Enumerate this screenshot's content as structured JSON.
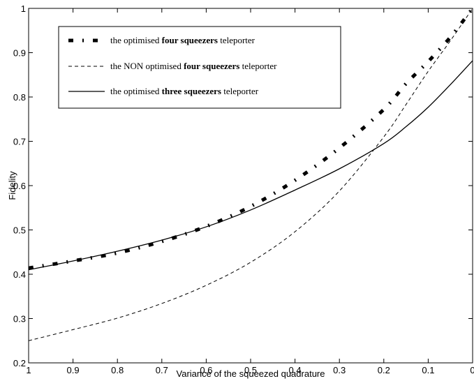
{
  "chart_data": {
    "type": "line",
    "title": "",
    "xlabel": "Variance of the squeezed quadrature",
    "ylabel": "Fidelity",
    "xlim": [
      1,
      0
    ],
    "ylim": [
      0.2,
      1
    ],
    "x_reversed": true,
    "xticks": [
      1,
      0.9,
      0.8,
      0.7,
      0.6,
      0.5,
      0.4,
      0.3,
      0.2,
      0.1,
      0
    ],
    "xtick_labels": [
      "1",
      "0.9",
      "0.8",
      "0.7",
      "0.6",
      "0.5",
      "0.4",
      "0.3",
      "0.2",
      "0.1",
      "0"
    ],
    "yticks": [
      0.2,
      0.3,
      0.4,
      0.5,
      0.6,
      0.7,
      0.8,
      0.9,
      1
    ],
    "ytick_labels": [
      "0.2",
      "0.3",
      "0.4",
      "0.5",
      "0.6",
      "0.7",
      "0.8",
      "0.9",
      "1"
    ],
    "grid": false,
    "legend_position": "top-left",
    "series": [
      {
        "legend": [
          "the optimised ",
          "four squeezers",
          " teleporter"
        ],
        "style": "dash-dot-bold",
        "color": "#000000",
        "x": [
          1,
          0.9,
          0.8,
          0.7,
          0.6,
          0.5,
          0.4,
          0.3,
          0.2,
          0.15,
          0.1,
          0.05,
          0
        ],
        "y": [
          0.414,
          0.43,
          0.448,
          0.474,
          0.508,
          0.553,
          0.612,
          0.685,
          0.772,
          0.83,
          0.88,
          0.935,
          1.0
        ]
      },
      {
        "legend": [
          "the NON optimised ",
          "four squeezers",
          " teleporter"
        ],
        "style": "dashed",
        "color": "#000000",
        "x": [
          1,
          0.9,
          0.8,
          0.7,
          0.6,
          0.5,
          0.4,
          0.3,
          0.2,
          0.15,
          0.1,
          0.05,
          0
        ],
        "y": [
          0.25,
          0.275,
          0.301,
          0.334,
          0.375,
          0.427,
          0.496,
          0.588,
          0.71,
          0.783,
          0.858,
          0.927,
          1.0
        ]
      },
      {
        "legend": [
          "the optimised ",
          "three squeezers",
          " teleporter"
        ],
        "style": "solid",
        "color": "#000000",
        "x": [
          1,
          0.9,
          0.8,
          0.7,
          0.6,
          0.5,
          0.4,
          0.3,
          0.2,
          0.15,
          0.1,
          0.05,
          0
        ],
        "y": [
          0.41,
          0.43,
          0.452,
          0.477,
          0.507,
          0.545,
          0.59,
          0.638,
          0.695,
          0.733,
          0.777,
          0.828,
          0.882
        ]
      }
    ]
  }
}
